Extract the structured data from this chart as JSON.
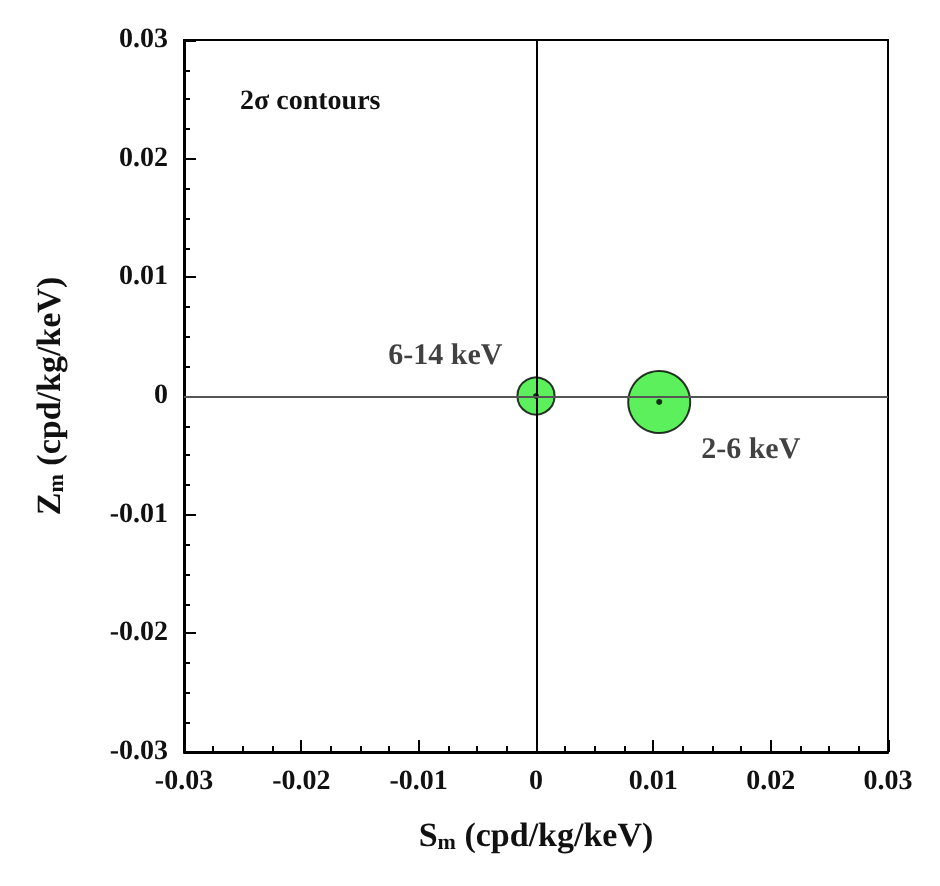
{
  "chart_data": {
    "type": "bubble",
    "xlabel": "S$_{m}$ (cpd/kg/keV)",
    "ylabel": "Z$_{m}$ (cpd/kg/keV)",
    "annotations": [
      "2σ contours"
    ],
    "series": [
      {
        "name": "6-14 keV",
        "color": "#33ee33",
        "x": [
          0
        ],
        "values": [
          0
        ],
        "sizes": [
          0.36
        ]
      },
      {
        "name": "2-6 keV",
        "color": "#33ee33",
        "x": [
          0.0105
        ],
        "values": [
          -0.0005
        ],
        "sizes": [
          1
        ]
      }
    ],
    "xlim": [
      -0.03,
      0.03
    ],
    "xticks": [
      -0.03,
      -0.02,
      -0.01,
      0,
      0.01,
      0.02,
      0.03
    ],
    "ylim": [
      -0.03,
      0.03
    ],
    "yticks": [
      -0.03,
      -0.02,
      -0.01,
      0,
      0.01,
      0.02,
      0.03
    ],
    "ref_lines": [
      {
        "axis": "x",
        "value": 0,
        "color": "#000000"
      },
      {
        "axis": "y",
        "value": 0,
        "color": "#555555"
      }
    ],
    "grid": false,
    "legend": false
  }
}
